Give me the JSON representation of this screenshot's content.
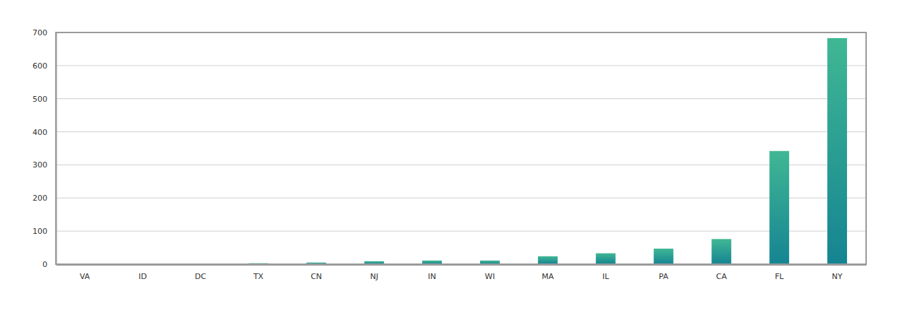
{
  "chart_data": {
    "type": "bar",
    "categories": [
      "VA",
      "ID",
      "DC",
      "TX",
      "CN",
      "NJ",
      "IN",
      "WI",
      "MA",
      "IL",
      "PA",
      "CA",
      "FL",
      "NY"
    ],
    "values": [
      1,
      2,
      2,
      3,
      5,
      9,
      11,
      11,
      24,
      33,
      47,
      76,
      342,
      683
    ],
    "color": "#27a394",
    "ylim": [
      0,
      700
    ],
    "yticks": [
      0,
      100,
      200,
      300,
      400,
      500,
      600,
      700
    ],
    "grid": true
  }
}
